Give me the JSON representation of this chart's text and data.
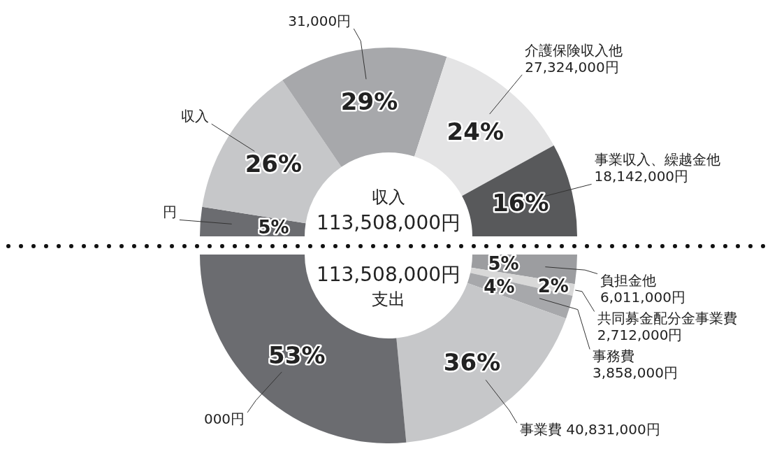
{
  "chart_data": [
    {
      "type": "donut",
      "categories": [
        "円",
        "収入",
        "31,000円",
        "介護保険収入他\n27,324,000円",
        "事業収入、繰越金他\n18,142,000円"
      ],
      "values": [
        5,
        26,
        29,
        24,
        16
      ],
      "value_labels": [
        "5%",
        "26%",
        "29%",
        "24%",
        "16%"
      ],
      "colors": [
        "#6b6c70",
        "#c6c7c9",
        "#a7a8ab",
        "#e4e4e5",
        "#58595b"
      ],
      "annotations": [
        "収入",
        "113,508,000円"
      ]
    },
    {
      "type": "donut",
      "categories": [
        "負担金他\n6,011,000円",
        "共同募金配分金事業費\n2,712,000円",
        "事務費\n3,858,000円",
        "事業費 40,831,000円",
        "000円"
      ],
      "values": [
        5,
        2,
        4,
        36,
        53
      ],
      "value_labels": [
        "5%",
        "2%",
        "4%",
        "36%",
        "53%"
      ],
      "colors": [
        "#9c9da0",
        "#d8d8d8",
        "#a7a8ab",
        "#c6c7c9",
        "#6b6c70"
      ],
      "annotations": [
        "113,508,000円",
        "支出"
      ]
    }
  ]
}
